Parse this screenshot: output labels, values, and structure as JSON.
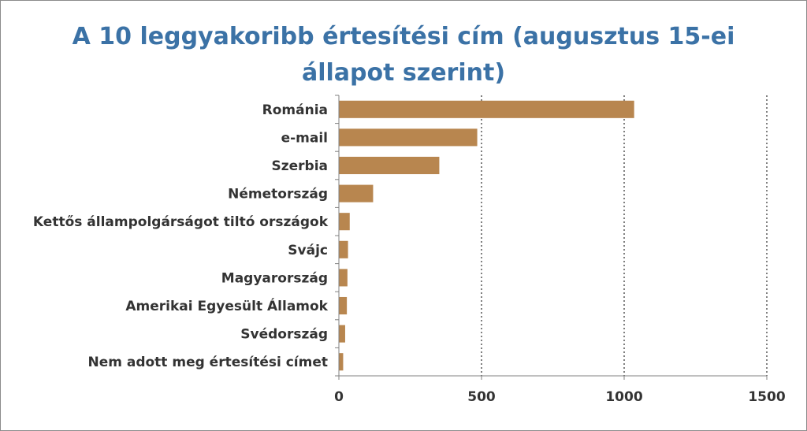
{
  "chart_data": {
    "type": "bar",
    "orientation": "horizontal",
    "title_line1": "A 10 leggyakoribb értesítési cím (augusztus 15-ei",
    "title_line2": "állapot szerint)",
    "categories": [
      "Románia",
      "e-mail",
      "Szerbia",
      "Németország",
      "Kettős állampolgárságot tiltó országok",
      "Svájc",
      "Magyarország",
      "Amerikai Egyesült Államok",
      "Svédország",
      "Nem adott meg értesítési címet"
    ],
    "values": [
      1035,
      485,
      352,
      120,
      38,
      32,
      30,
      28,
      22,
      15
    ],
    "xlim": [
      0,
      1500
    ],
    "xticks": [
      "0",
      "500",
      "1000",
      "1500"
    ],
    "grid": "vertical dotted",
    "bar_color": "#b8864f"
  }
}
